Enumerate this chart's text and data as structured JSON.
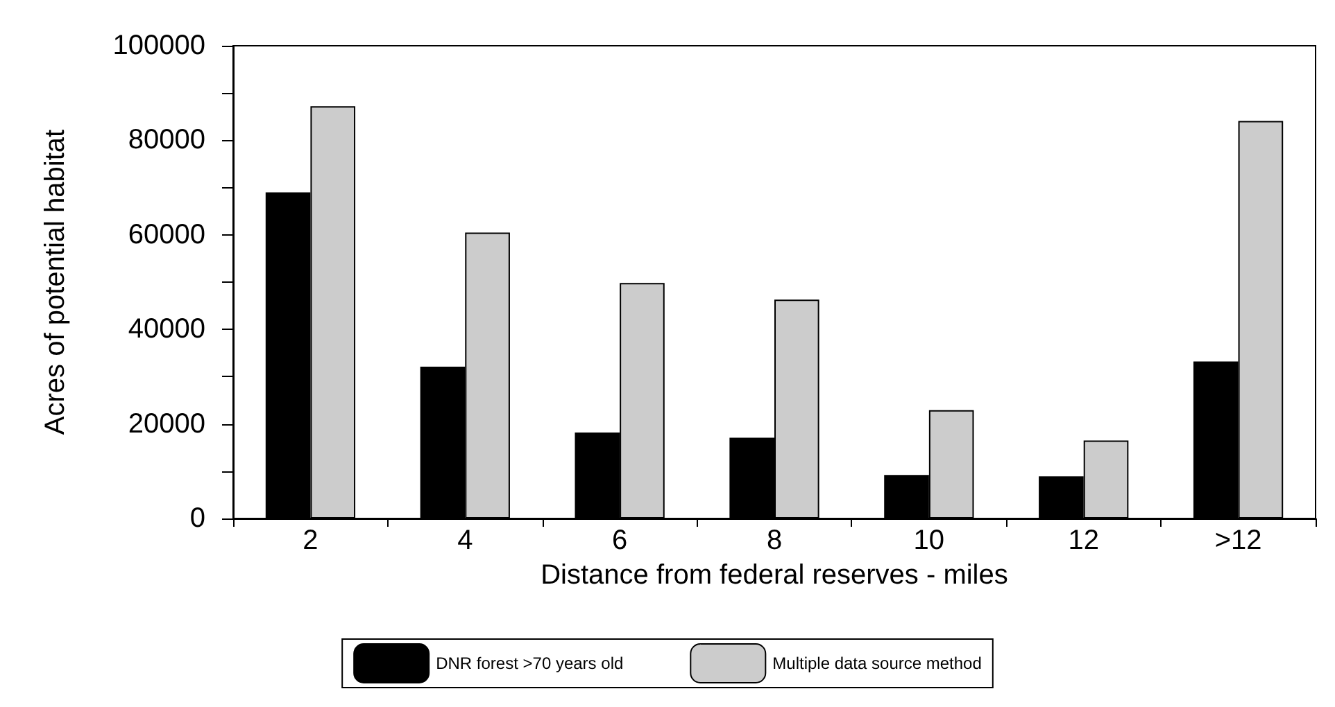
{
  "chart_data": {
    "type": "bar",
    "xlabel": "Distance from federal reserves - miles",
    "ylabel": "Acres of potential habitat",
    "categories": [
      "2",
      "4",
      "6",
      "8",
      "10",
      "12",
      ">12"
    ],
    "series": [
      {
        "name": "DNR forest >70 years old",
        "color": "#000000",
        "values": [
          69000,
          32100,
          18200,
          17100,
          9200,
          8900,
          33200
        ]
      },
      {
        "name": "Multiple data source method",
        "color": "#cccccc",
        "values": [
          87200,
          60500,
          49800,
          46300,
          22900,
          16500,
          84100
        ]
      }
    ],
    "ylim": [
      0,
      100000
    ],
    "yticks": [
      0,
      {
        "value": 10000,
        "label": null
      },
      20000,
      {
        "value": 30000,
        "label": null
      },
      40000,
      {
        "value": 50000,
        "label": null
      },
      60000,
      {
        "value": 70000,
        "label": null
      },
      80000,
      {
        "value": 90000,
        "label": null
      },
      100000
    ],
    "grid": false,
    "legend": "bottom"
  }
}
